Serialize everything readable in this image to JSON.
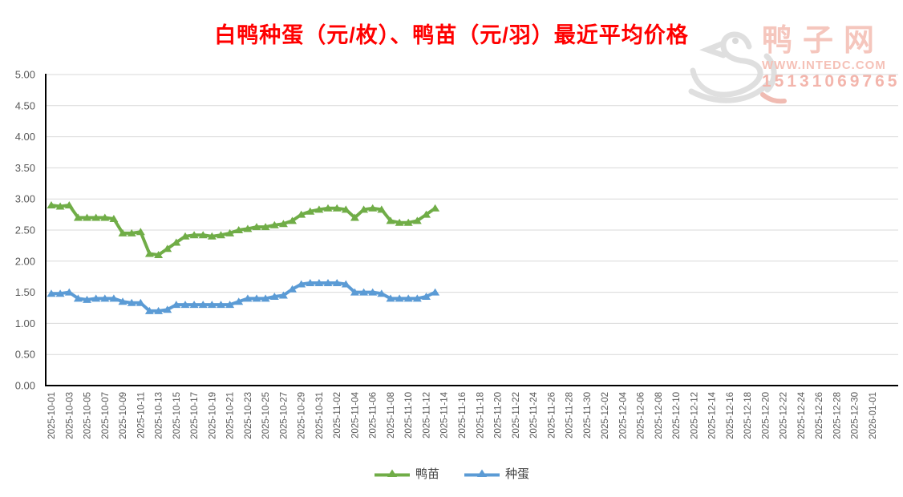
{
  "title": "白鸭种蛋（元/枚）、鸭苗（元/羽）最近平均价格",
  "watermark": {
    "site_name": "鸭子网",
    "url": "WWW.INTEDC.COM",
    "phone": "15131069765",
    "logo": "duck-logo"
  },
  "colors": {
    "title": "#ff0000",
    "duckling_series": "#70AD47",
    "egg_series": "#5B9BD5",
    "gridline": "#d9d9d9",
    "axis": "#000000",
    "tick_text": "#595959",
    "watermark_text": "#f5c0b6",
    "watermark_logo": "#dedede"
  },
  "legend": [
    {
      "label": "鸭苗",
      "color": "#70AD47"
    },
    {
      "label": "种蛋",
      "color": "#5B9BD5"
    }
  ],
  "chart_data": {
    "type": "line",
    "title": "白鸭种蛋（元/枚）、鸭苗（元/羽）最近平均价格",
    "xlabel": "",
    "ylabel": "",
    "ylim": [
      0,
      5
    ],
    "ytick_labels": [
      "0.00",
      "0.50",
      "1.00",
      "1.50",
      "2.00",
      "2.50",
      "3.00",
      "3.50",
      "4.00",
      "4.50",
      "5.00"
    ],
    "grid": "horizontal",
    "legend_position": "bottom",
    "marker": "triangle-up",
    "xtick_labels": [
      "2025-10-01",
      "2025-10-03",
      "2025-10-05",
      "2025-10-07",
      "2025-10-09",
      "2025-10-11",
      "2025-10-13",
      "2025-10-15",
      "2025-10-17",
      "2025-10-19",
      "2025-10-21",
      "2025-10-23",
      "2025-10-25",
      "2025-10-27",
      "2025-10-29",
      "2025-10-31",
      "2025-11-02",
      "2025-11-04",
      "2025-11-06",
      "2025-11-08",
      "2025-11-10",
      "2025-11-12",
      "2025-11-14",
      "2025-11-16",
      "2025-11-18",
      "2025-11-20",
      "2025-11-22",
      "2025-11-24",
      "2025-11-26",
      "2025-11-28",
      "2025-11-30",
      "2025-12-02",
      "2025-12-04",
      "2025-12-06",
      "2025-12-08",
      "2025-12-10",
      "2025-12-12",
      "2025-12-14",
      "2025-12-16",
      "2025-12-18",
      "2025-12-20",
      "2025-12-22",
      "2025-12-24",
      "2025-12-26",
      "2025-12-28",
      "2025-12-30",
      "2026-01-01"
    ],
    "dates": [
      "2025-10-01",
      "2025-10-02",
      "2025-10-03",
      "2025-10-04",
      "2025-10-05",
      "2025-10-06",
      "2025-10-07",
      "2025-10-08",
      "2025-10-09",
      "2025-10-10",
      "2025-10-11",
      "2025-10-12",
      "2025-10-13",
      "2025-10-14",
      "2025-10-15",
      "2025-10-16",
      "2025-10-17",
      "2025-10-18",
      "2025-10-19",
      "2025-10-20",
      "2025-10-21",
      "2025-10-22",
      "2025-10-23",
      "2025-10-24",
      "2025-10-25",
      "2025-10-26",
      "2025-10-27",
      "2025-10-28",
      "2025-10-29",
      "2025-10-30",
      "2025-10-31",
      "2025-11-01",
      "2025-11-02",
      "2025-11-03",
      "2025-11-04",
      "2025-11-05",
      "2025-11-06",
      "2025-11-07",
      "2025-11-08",
      "2025-11-09",
      "2025-11-10",
      "2025-11-11",
      "2025-11-12",
      "2025-11-13"
    ],
    "series": [
      {
        "name": "鸭苗",
        "unit": "元/羽",
        "color": "#70AD47",
        "values": [
          2.9,
          2.88,
          2.9,
          2.7,
          2.7,
          2.7,
          2.7,
          2.68,
          2.45,
          2.45,
          2.47,
          2.12,
          2.1,
          2.2,
          2.3,
          2.4,
          2.42,
          2.42,
          2.4,
          2.42,
          2.45,
          2.5,
          2.52,
          2.55,
          2.55,
          2.58,
          2.6,
          2.65,
          2.75,
          2.8,
          2.83,
          2.85,
          2.85,
          2.83,
          2.7,
          2.83,
          2.85,
          2.83,
          2.65,
          2.62,
          2.62,
          2.65,
          2.75,
          2.85
        ]
      },
      {
        "name": "种蛋",
        "unit": "元/枚",
        "color": "#5B9BD5",
        "values": [
          1.48,
          1.48,
          1.5,
          1.4,
          1.38,
          1.4,
          1.4,
          1.4,
          1.35,
          1.33,
          1.33,
          1.2,
          1.2,
          1.22,
          1.3,
          1.3,
          1.3,
          1.3,
          1.3,
          1.3,
          1.3,
          1.35,
          1.4,
          1.4,
          1.4,
          1.43,
          1.45,
          1.55,
          1.63,
          1.65,
          1.65,
          1.65,
          1.65,
          1.63,
          1.5,
          1.5,
          1.5,
          1.48,
          1.4,
          1.4,
          1.4,
          1.4,
          1.43,
          1.5
        ]
      }
    ]
  }
}
